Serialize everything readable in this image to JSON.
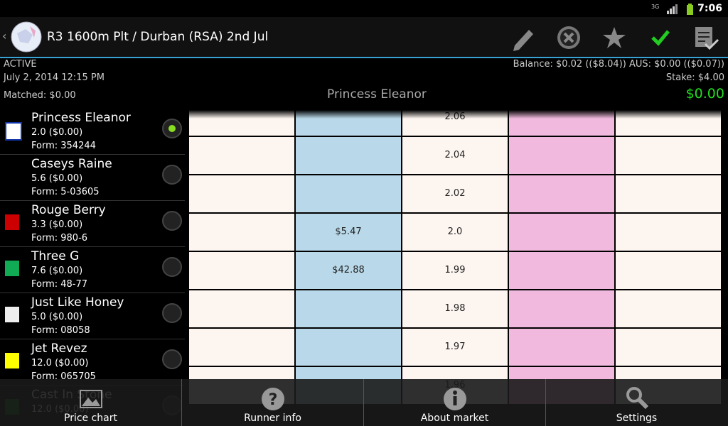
{
  "status_bar": {
    "network": "3G",
    "time": "7:06"
  },
  "action_bar": {
    "title": "R3 1600m Plt / Durban (RSA) 2nd Jul"
  },
  "info": {
    "state": "ACTIVE",
    "date": "July 2, 2014 12:15 PM",
    "matched": "Matched: $0.00",
    "balance": "Balance: $0.02 (($8.04)) AUS: $0.00 (($0.07))",
    "stake": "Stake: $4.00",
    "selected_runner": "Princess Eleanor",
    "profit": "$0.00"
  },
  "runners": [
    {
      "name": "Princess Eleanor",
      "odds": "2.0 ($0.00)",
      "form": "Form: 354244",
      "selected": true
    },
    {
      "name": "Caseys Raine",
      "odds": "5.6 ($0.00)",
      "form": "Form: 5-03605",
      "selected": false
    },
    {
      "name": "Rouge Berry",
      "odds": "3.3 ($0.00)",
      "form": "Form: 980-6",
      "selected": false
    },
    {
      "name": "Three G",
      "odds": "7.6 ($0.00)",
      "form": "Form: 48-77",
      "selected": false
    },
    {
      "name": "Just Like Honey",
      "odds": "5.0 ($0.00)",
      "form": "Form: 08058",
      "selected": false
    },
    {
      "name": "Jet Revez",
      "odds": "12.0 ($0.00)",
      "form": "Form: 065705",
      "selected": false
    },
    {
      "name": "Cast In Stone",
      "odds": "12.0 ($0.00)",
      "selected": false
    }
  ],
  "ladder": [
    {
      "price": "2.06"
    },
    {
      "price": "2.04"
    },
    {
      "price": "2.02"
    },
    {
      "price": "2.0",
      "back": "$5.47"
    },
    {
      "price": "1.99",
      "back": "$42.88"
    },
    {
      "price": "1.98"
    },
    {
      "price": "1.97"
    },
    {
      "price": "1.96"
    }
  ],
  "bottom_bar": [
    "Price chart",
    "Runner info",
    "About market",
    "Settings"
  ]
}
